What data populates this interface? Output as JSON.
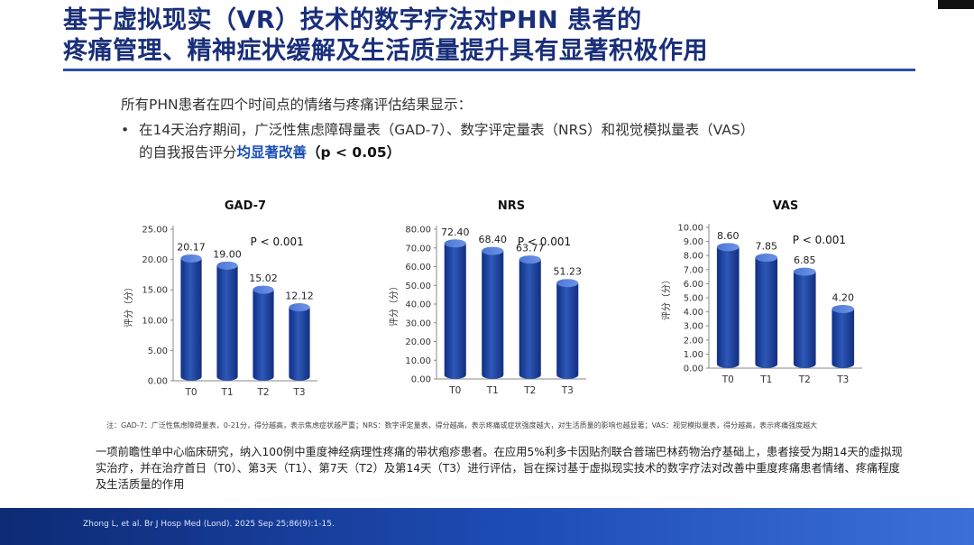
{
  "title": {
    "line1": "基于虚拟现实（VR）技术的数字疗法对PHN 患者的",
    "line2": "疼痛管理、精神症状缓解及生活质量提升具有显著积极作用"
  },
  "intro": "所有PHN患者在四个时间点的情绪与疼痛评估结果显示：",
  "bullet": {
    "marker": "•",
    "line1": "在14天治疗期间，广泛性焦虑障碍量表（GAD-7）、数字评定量表（NRS）和视觉模拟量表（VAS）",
    "line2_prefix": "的自我报告评分",
    "line2_highlight": "均显著改善",
    "line2_p": "（p < 0.05）"
  },
  "chart_data": [
    {
      "type": "bar",
      "title": "GAD-7",
      "ylabel": "评分（分）",
      "categories": [
        "T0",
        "T1",
        "T2",
        "T3"
      ],
      "values": [
        20.17,
        19.0,
        15.02,
        12.12
      ],
      "value_labels": [
        "20.17",
        "19.00",
        "15.02",
        "12.12"
      ],
      "yticks": [
        "0.00",
        "5.00",
        "10.00",
        "15.00",
        "20.00",
        "25.00"
      ],
      "ylim": [
        0,
        25
      ],
      "annotation": "P < 0.001",
      "legend": "none",
      "grid": false,
      "bar_color": "#2e58b7"
    },
    {
      "type": "bar",
      "title": "NRS",
      "ylabel": "评分（分）",
      "categories": [
        "T0",
        "T1",
        "T2",
        "T3"
      ],
      "values": [
        72.4,
        68.4,
        63.77,
        51.23
      ],
      "value_labels": [
        "72.40",
        "68.40",
        "63.77",
        "51.23"
      ],
      "yticks": [
        "0.00",
        "10.00",
        "20.00",
        "30.00",
        "40.00",
        "50.00",
        "60.00",
        "70.00",
        "80.00"
      ],
      "ylim": [
        0,
        80
      ],
      "annotation": "P < 0.001",
      "legend": "none",
      "grid": false,
      "bar_color": "#2e58b7"
    },
    {
      "type": "bar",
      "title": "VAS",
      "ylabel": "评分（分）",
      "categories": [
        "T0",
        "T1",
        "T2",
        "T3"
      ],
      "values": [
        8.6,
        7.85,
        6.85,
        4.2
      ],
      "value_labels": [
        "8.60",
        "7.85",
        "6.85",
        "4.20"
      ],
      "yticks": [
        "0.00",
        "1.00",
        "2.00",
        "3.00",
        "4.00",
        "5.00",
        "6.00",
        "7.00",
        "8.00",
        "9.00",
        "10.00"
      ],
      "ylim": [
        0,
        10
      ],
      "annotation": "P < 0.001",
      "legend": "none",
      "grid": false,
      "bar_color": "#2e58b7"
    }
  ],
  "footnote": "注：GAD-7：广泛性焦虑障碍量表，0-21分，得分越高，表示焦虑症状越严重；NRS：数字评定量表，得分越高，表示疼痛或症状强度越大，对生活质量的影响也越显著；VAS：视觉模拟量表，得分越高，表示疼痛强度越大",
  "summary": "一项前瞻性单中心临床研究，纳入100例中重度神经病理性疼痛的带状疱疹患者。在应用5%利多卡因贴剂联合普瑞巴林药物治疗基础上，患者接受为期14天的虚拟现实治疗，并在治疗首日（T0）、第3天（T1）、第7天（T2）及第14天（T3）进行评估，旨在探讨基于虚拟现实技术的数字疗法对改善中重度疼痛患者情绪、疼痛程度及生活质量的作用",
  "citation": "Zhong L, et al. Br J Hosp Med (Lond). 2025 Sep 25;86(9):1-15.",
  "colors": {
    "title": "#1a2f7a",
    "accent": "#2b4ca8",
    "highlight": "#1d4fb6",
    "band": "#1f4db8"
  }
}
